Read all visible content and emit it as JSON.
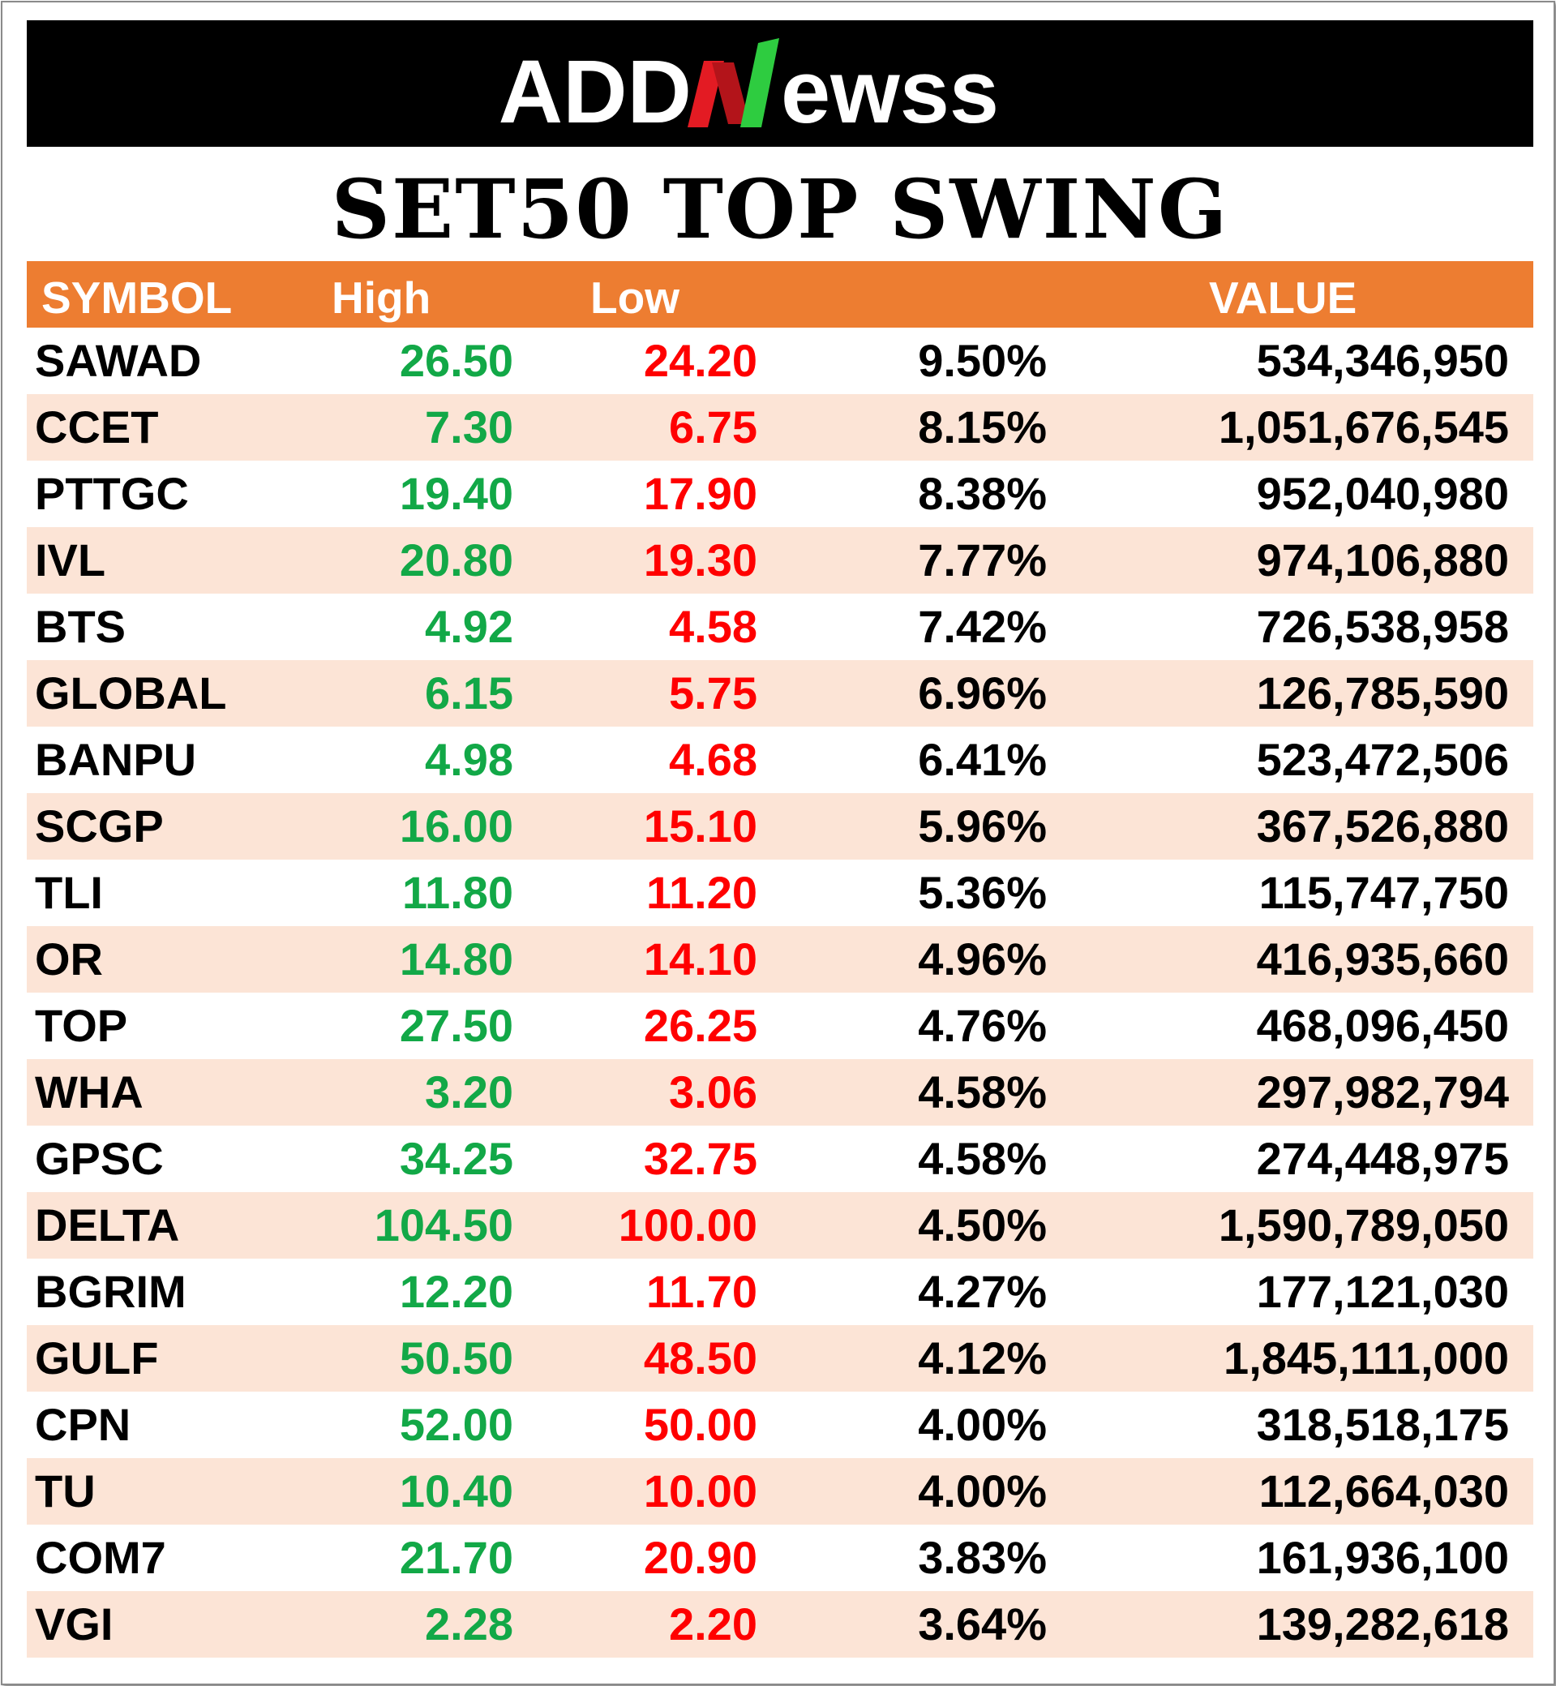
{
  "brand": {
    "name": "ADDNewss",
    "logo_left": "ADD",
    "logo_right": "ewss",
    "colors": {
      "banner": "#000000",
      "n_green": "#22b14c",
      "n_red": "#e31b23"
    }
  },
  "title": "SET50 TOP SWING",
  "table": {
    "headers": {
      "symbol": "SYMBOL",
      "high": "High",
      "low": "Low",
      "change": "",
      "value": "VALUE"
    },
    "colors": {
      "header_bg": "#ed7d31",
      "alt_row": "#fce4d6",
      "high": "#12a847",
      "low": "#ff0000"
    },
    "rows": [
      {
        "symbol": "SAWAD",
        "high": "26.50",
        "low": "24.20",
        "change": "9.50%",
        "value": "534,346,950"
      },
      {
        "symbol": "CCET",
        "high": "7.30",
        "low": "6.75",
        "change": "8.15%",
        "value": "1,051,676,545"
      },
      {
        "symbol": "PTTGC",
        "high": "19.40",
        "low": "17.90",
        "change": "8.38%",
        "value": "952,040,980"
      },
      {
        "symbol": "IVL",
        "high": "20.80",
        "low": "19.30",
        "change": "7.77%",
        "value": "974,106,880"
      },
      {
        "symbol": "BTS",
        "high": "4.92",
        "low": "4.58",
        "change": "7.42%",
        "value": "726,538,958"
      },
      {
        "symbol": "GLOBAL",
        "high": "6.15",
        "low": "5.75",
        "change": "6.96%",
        "value": "126,785,590"
      },
      {
        "symbol": "BANPU",
        "high": "4.98",
        "low": "4.68",
        "change": "6.41%",
        "value": "523,472,506"
      },
      {
        "symbol": "SCGP",
        "high": "16.00",
        "low": "15.10",
        "change": "5.96%",
        "value": "367,526,880"
      },
      {
        "symbol": "TLI",
        "high": "11.80",
        "low": "11.20",
        "change": "5.36%",
        "value": "115,747,750"
      },
      {
        "symbol": "OR",
        "high": "14.80",
        "low": "14.10",
        "change": "4.96%",
        "value": "416,935,660"
      },
      {
        "symbol": "TOP",
        "high": "27.50",
        "low": "26.25",
        "change": "4.76%",
        "value": "468,096,450"
      },
      {
        "symbol": "WHA",
        "high": "3.20",
        "low": "3.06",
        "change": "4.58%",
        "value": "297,982,794"
      },
      {
        "symbol": "GPSC",
        "high": "34.25",
        "low": "32.75",
        "change": "4.58%",
        "value": "274,448,975"
      },
      {
        "symbol": "DELTA",
        "high": "104.50",
        "low": "100.00",
        "change": "4.50%",
        "value": "1,590,789,050"
      },
      {
        "symbol": "BGRIM",
        "high": "12.20",
        "low": "11.70",
        "change": "4.27%",
        "value": "177,121,030"
      },
      {
        "symbol": "GULF",
        "high": "50.50",
        "low": "48.50",
        "change": "4.12%",
        "value": "1,845,111,000"
      },
      {
        "symbol": "CPN",
        "high": "52.00",
        "low": "50.00",
        "change": "4.00%",
        "value": "318,518,175"
      },
      {
        "symbol": "TU",
        "high": "10.40",
        "low": "10.00",
        "change": "4.00%",
        "value": "112,664,030"
      },
      {
        "symbol": "COM7",
        "high": "21.70",
        "low": "20.90",
        "change": "3.83%",
        "value": "161,936,100"
      },
      {
        "symbol": "VGI",
        "high": "2.28",
        "low": "2.20",
        "change": "3.64%",
        "value": "139,282,618"
      }
    ]
  }
}
